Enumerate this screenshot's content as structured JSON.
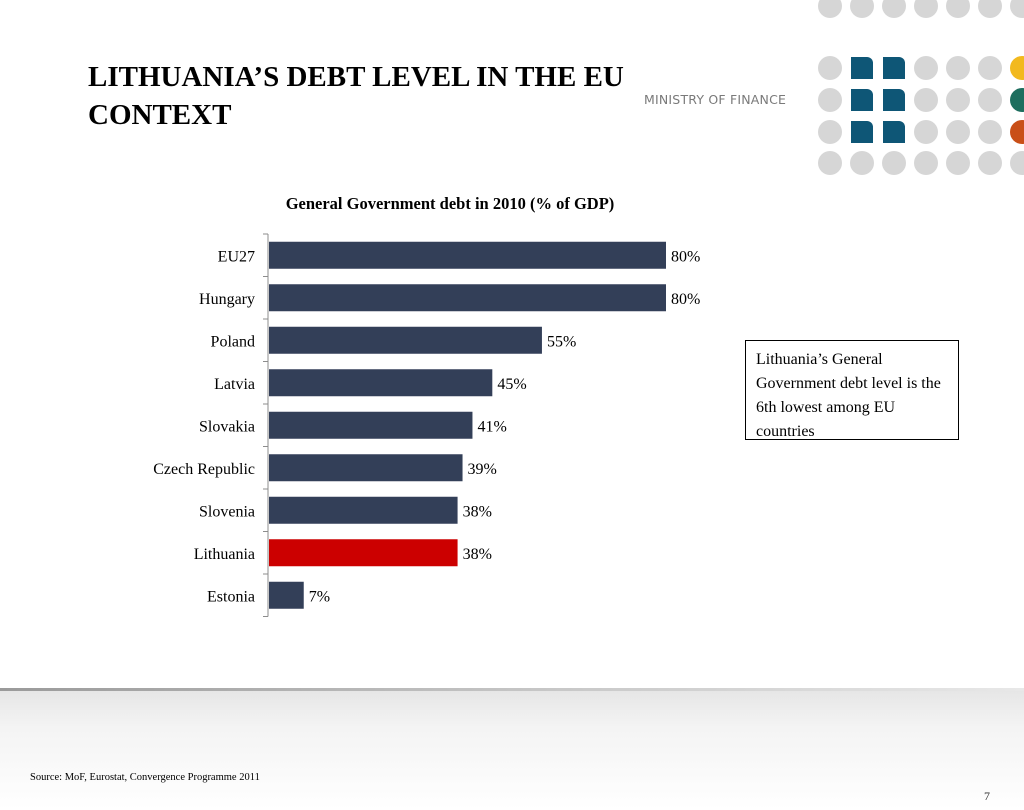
{
  "slide": {
    "title": "LITHUANIA’S DEBT LEVEL IN THE EU CONTEXT",
    "ministry": "MINISTRY OF FINANCE",
    "callout": "Lithuania’s General Government debt level is the 6th lowest among EU countries",
    "source": "Source: MoF, Eurostat, Convergence Programme 2011",
    "page_number": "7"
  },
  "colors": {
    "bar": "#333f58",
    "highlight": "#cc0000",
    "logo_grey": "#d6d6d6",
    "logo_teal": "#0e5676",
    "logo_yellow": "#f2b91e",
    "logo_green": "#1d6e5e",
    "logo_orange": "#c94f18"
  },
  "chart_data": {
    "type": "bar",
    "orientation": "horizontal",
    "title": "General Government debt in 2010 (% of GDP)",
    "categories": [
      "EU27",
      "Hungary",
      "Poland",
      "Latvia",
      "Slovakia",
      "Czech Republic",
      "Slovenia",
      "Lithuania",
      "Estonia"
    ],
    "values": [
      80,
      80,
      55,
      45,
      41,
      39,
      38,
      38,
      7
    ],
    "data_labels": [
      "80%",
      "80%",
      "55%",
      "45%",
      "41%",
      "39%",
      "38%",
      "38%",
      "7%"
    ],
    "highlight": "Lithuania",
    "xlim": [
      0,
      80
    ],
    "grid": false,
    "legend": "none"
  }
}
